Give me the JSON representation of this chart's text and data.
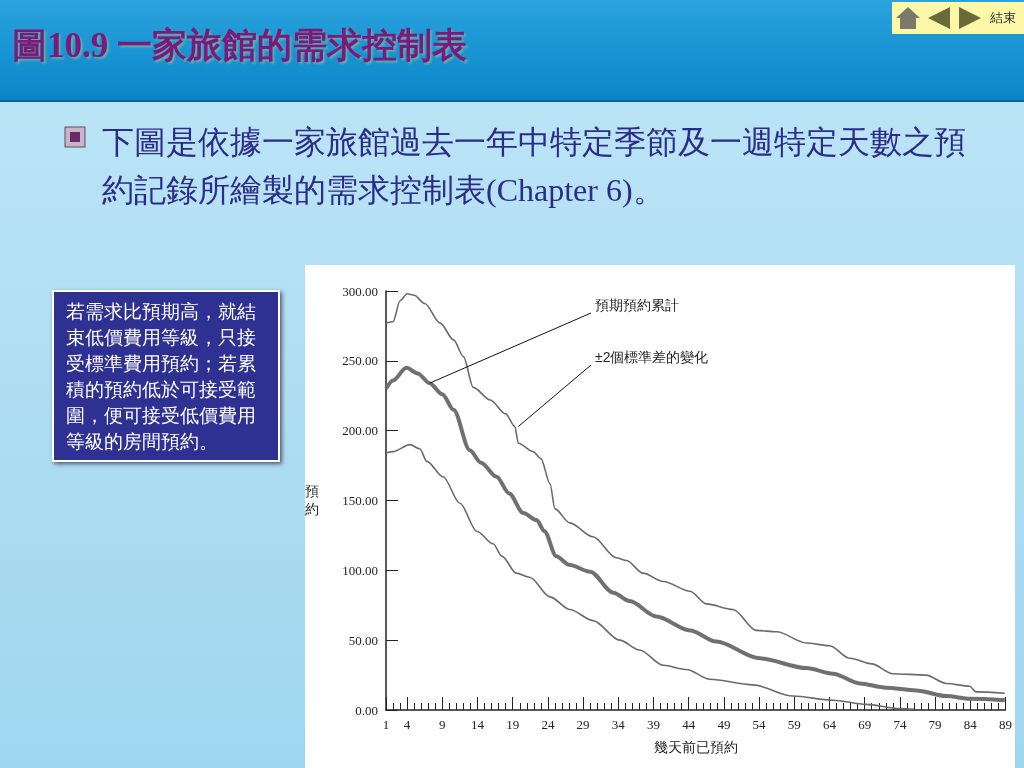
{
  "chart_data": {
    "type": "line",
    "title": "圖10.9 一家旅館的需求控制表",
    "subtitle": "下圖是依據一家旅館過去一年中特定季節及一週特定天數之預約記錄所繪製的需求控制表(Chapter 6)。",
    "xlabel": "幾天前已預約",
    "ylabel": "預約",
    "annotations": [
      "若需求比預期高，就結束低價費用等級，只接受標準費用預約；若累積的預約低於可接受範圍，便可接受低價費用等級的房間預約。",
      "結束",
      {
        "text": "預期預約累計",
        "x": 7.2,
        "y": 234
      },
      {
        "text": "±2個標準差的變化",
        "x": 19.8,
        "y": 203
      }
    ],
    "series": [
      {
        "color": "#6a6a6a",
        "x": [
          1,
          2,
          3,
          4,
          5,
          6.5,
          8.7,
          10.6,
          12,
          13.4,
          15.8,
          18,
          19.3,
          19.8,
          21.9,
          23,
          24.3,
          25,
          27.1,
          30.4,
          33.7,
          35.2,
          37.5,
          40.4,
          44.2,
          46.5,
          50.3,
          53.6,
          56.5,
          60.7,
          64,
          66.9,
          70,
          73,
          77.7,
          80.6,
          83.9,
          84.8,
          88.9
        ],
        "values": [
          277,
          278,
          293,
          298,
          297,
          291,
          277,
          265,
          253,
          231,
          222,
          212,
          203,
          191,
          185,
          180,
          162,
          144,
          134,
          124,
          109,
          107,
          98,
          92,
          85,
          76,
          72,
          57,
          56,
          48,
          46,
          37,
          33,
          26,
          25,
          19,
          17,
          13,
          12
        ]
      },
      {
        "color": "#707070",
        "x": [
          1,
          2,
          3.9,
          5.5,
          7.2,
          9,
          10.6,
          12.9,
          14.5,
          16.7,
          18.5,
          20.5,
          22.4,
          23.5,
          25.2,
          27,
          30,
          33.3,
          35.6,
          39.4,
          44.2,
          47.9,
          54.1,
          60.7,
          64.5,
          68.3,
          72,
          76.3,
          80.6,
          84,
          88.9
        ],
        "values": [
          230,
          236,
          245,
          241,
          234,
          226,
          215,
          186,
          177,
          167,
          155,
          141,
          136,
          128,
          110,
          104,
          99,
          84,
          78,
          67,
          57,
          49,
          37,
          30,
          26,
          19,
          16,
          14,
          10,
          8,
          7
        ]
      },
      {
        "color": "#6a6a6a",
        "x": [
          1,
          2,
          4.4,
          5.8,
          6.8,
          9.1,
          11.5,
          13.9,
          16.2,
          17.5,
          19.5,
          21.4,
          24.3,
          27.1,
          30.4,
          34.2,
          37,
          40.4,
          43.7,
          47,
          53.1,
          58.8,
          64.5,
          69.2,
          74,
          76
        ],
        "values": [
          184,
          185,
          190,
          187,
          178,
          167,
          148,
          128,
          119,
          110,
          98,
          95,
          81,
          72,
          64,
          50,
          43,
          32,
          29,
          22,
          18,
          10,
          7,
          4,
          1,
          0.5
        ]
      }
    ],
    "xlim": [
      1,
      89
    ],
    "xticks": [
      1,
      {
        "value": 2,
        "label": null
      },
      {
        "value": 3,
        "label": null
      },
      4,
      {
        "value": 5,
        "label": null
      },
      {
        "value": 6,
        "label": null
      },
      {
        "value": 7,
        "label": null
      },
      {
        "value": 8,
        "label": null
      },
      9,
      {
        "value": 10,
        "label": null
      },
      {
        "value": 11,
        "label": null
      },
      {
        "value": 12,
        "label": null
      },
      {
        "value": 13,
        "label": null
      },
      14,
      {
        "value": 15,
        "label": null
      },
      {
        "value": 16,
        "label": null
      },
      {
        "value": 17,
        "label": null
      },
      {
        "value": 18,
        "label": null
      },
      19,
      {
        "value": 20,
        "label": null
      },
      {
        "value": 21,
        "label": null
      },
      {
        "value": 22,
        "label": null
      },
      {
        "value": 23,
        "label": null
      },
      24,
      {
        "value": 25,
        "label": null
      },
      {
        "value": 26,
        "label": null
      },
      {
        "value": 27,
        "label": null
      },
      {
        "value": 28,
        "label": null
      },
      29,
      {
        "value": 30,
        "label": null
      },
      {
        "value": 31,
        "label": null
      },
      {
        "value": 32,
        "label": null
      },
      {
        "value": 33,
        "label": null
      },
      34,
      {
        "value": 35,
        "label": null
      },
      {
        "value": 36,
        "label": null
      },
      {
        "value": 37,
        "label": null
      },
      {
        "value": 38,
        "label": null
      },
      39,
      {
        "value": 40,
        "label": null
      },
      {
        "value": 41,
        "label": null
      },
      {
        "value": 42,
        "label": null
      },
      {
        "value": 43,
        "label": null
      },
      44,
      {
        "value": 45,
        "label": null
      },
      {
        "value": 46,
        "label": null
      },
      {
        "value": 47,
        "label": null
      },
      {
        "value": 48,
        "label": null
      },
      49,
      {
        "value": 50,
        "label": null
      },
      {
        "value": 51,
        "label": null
      },
      {
        "value": 52,
        "label": null
      },
      {
        "value": 53,
        "label": null
      },
      54,
      {
        "value": 55,
        "label": null
      },
      {
        "value": 56,
        "label": null
      },
      {
        "value": 57,
        "label": null
      },
      {
        "value": 58,
        "label": null
      },
      59,
      {
        "value": 60,
        "label": null
      },
      {
        "value": 61,
        "label": null
      },
      {
        "value": 62,
        "label": null
      },
      {
        "value": 63,
        "label": null
      },
      64,
      {
        "value": 65,
        "label": null
      },
      {
        "value": 66,
        "label": null
      },
      {
        "value": 67,
        "label": null
      },
      {
        "value": 68,
        "label": null
      },
      69,
      {
        "value": 70,
        "label": null
      },
      {
        "value": 71,
        "label": null
      },
      {
        "value": 72,
        "label": null
      },
      {
        "value": 73,
        "label": null
      },
      74,
      {
        "value": 75,
        "label": null
      },
      {
        "value": 76,
        "label": null
      },
      {
        "value": 77,
        "label": null
      },
      {
        "value": 78,
        "label": null
      },
      79,
      {
        "value": 80,
        "label": null
      },
      {
        "value": 81,
        "label": null
      },
      {
        "value": 82,
        "label": null
      },
      {
        "value": 83,
        "label": null
      },
      84,
      {
        "value": 85,
        "label": null
      },
      {
        "value": 86,
        "label": null
      },
      {
        "value": 87,
        "label": null
      },
      {
        "value": 88,
        "label": null
      },
      89
    ],
    "ylim": [
      0,
      300
    ],
    "yticks": [
      {
        "value": 0,
        "label": "0.00"
      },
      {
        "value": 50,
        "label": "50.00"
      },
      {
        "value": 100,
        "label": "100.00"
      },
      {
        "value": 150,
        "label": "150.00"
      },
      {
        "value": 200,
        "label": "200.00"
      },
      {
        "value": 250,
        "label": "250.00"
      },
      {
        "value": 300,
        "label": "300.00"
      }
    ],
    "grid": false,
    "marker": "none"
  }
}
